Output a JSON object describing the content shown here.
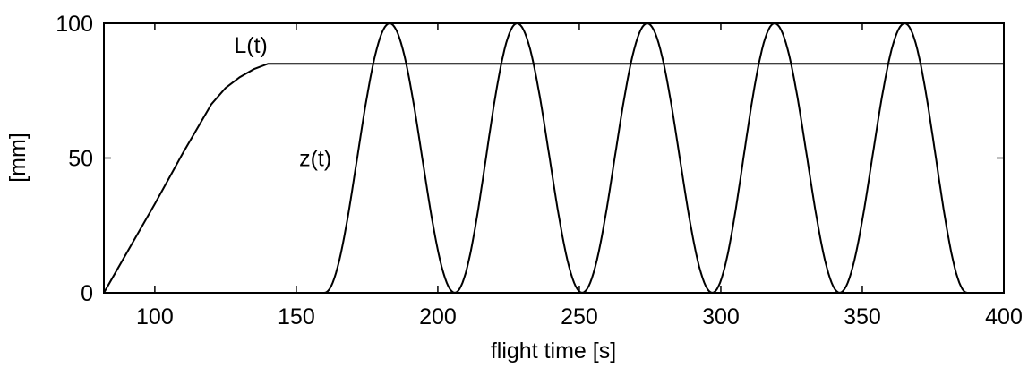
{
  "chart_data": {
    "type": "line",
    "xlabel": "flight time [s]",
    "ylabel": "[mm]",
    "xlim": [
      82,
      400
    ],
    "ylim": [
      0,
      100
    ],
    "xticks": [
      100,
      150,
      200,
      250,
      300,
      350,
      400
    ],
    "yticks": [
      0,
      50,
      100
    ],
    "grid": false,
    "legend": "none",
    "series": [
      {
        "name": "L(t)",
        "x": [
          82,
          100,
          110,
          120,
          125,
          130,
          135,
          140,
          400
        ],
        "y": [
          0,
          33,
          52,
          70,
          76,
          80,
          83,
          85,
          85
        ]
      },
      {
        "name": "z(t)",
        "form": "0 for x < 160; 50*(1 - cos(2*pi*(x-160)/45.5)) for 160 <= x <= 387.5; 0 for x > 387.5",
        "x": [
          82,
          160,
          183,
          206,
          228,
          251,
          274,
          297,
          319,
          342,
          365,
          387,
          400
        ],
        "y": [
          0,
          0,
          100,
          0,
          100,
          0,
          100,
          0,
          100,
          0,
          100,
          0,
          0
        ]
      }
    ],
    "annotations": [
      {
        "text": "L(t)",
        "x": 128,
        "y": 89
      },
      {
        "text": "z(t)",
        "x": 151,
        "y": 47
      }
    ]
  }
}
